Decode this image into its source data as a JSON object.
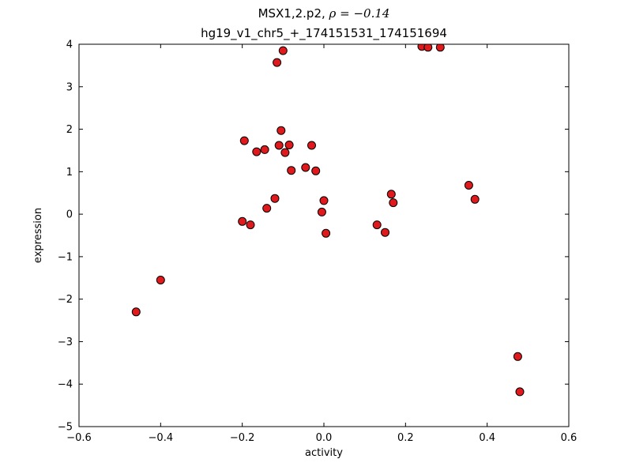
{
  "chart_data": {
    "type": "scatter",
    "title_prefix": "MSX1,2.p2, ",
    "title_math": "ρ = −0.14",
    "title_line2": "hg19_v1_chr5_+_174151531_174151694",
    "xlabel": "activity",
    "ylabel": "expression",
    "xlim": [
      -0.6,
      0.6
    ],
    "ylim": [
      -5,
      4
    ],
    "xticks": [
      -0.6,
      -0.4,
      -0.2,
      0.0,
      0.2,
      0.4,
      0.6
    ],
    "xtick_labels": [
      "−0.6",
      "−0.4",
      "−0.2",
      "0.0",
      "0.2",
      "0.4",
      "0.6"
    ],
    "yticks": [
      -5,
      -4,
      -3,
      -2,
      -1,
      0,
      1,
      2,
      3,
      4
    ],
    "ytick_labels": [
      "−5",
      "−4",
      "−3",
      "−2",
      "−1",
      "0",
      "1",
      "2",
      "3",
      "4"
    ],
    "grid": false,
    "legend": null,
    "marker": {
      "shape": "circle",
      "fill": "#e01a1c",
      "edge": "#000000",
      "radius": 5
    },
    "points": [
      [
        -0.46,
        -2.3
      ],
      [
        -0.4,
        -1.55
      ],
      [
        -0.2,
        -0.17
      ],
      [
        -0.195,
        1.73
      ],
      [
        -0.18,
        -0.25
      ],
      [
        -0.165,
        1.47
      ],
      [
        -0.145,
        1.52
      ],
      [
        -0.14,
        0.14
      ],
      [
        -0.12,
        0.37
      ],
      [
        -0.115,
        3.57
      ],
      [
        -0.1,
        3.85
      ],
      [
        -0.105,
        1.97
      ],
      [
        -0.11,
        1.62
      ],
      [
        -0.095,
        1.45
      ],
      [
        -0.085,
        1.63
      ],
      [
        -0.08,
        1.03
      ],
      [
        -0.045,
        1.1
      ],
      [
        -0.03,
        1.62
      ],
      [
        -0.02,
        1.02
      ],
      [
        -0.005,
        0.05
      ],
      [
        0.0,
        0.32
      ],
      [
        0.005,
        -0.45
      ],
      [
        0.13,
        -0.25
      ],
      [
        0.15,
        -0.43
      ],
      [
        0.165,
        0.47
      ],
      [
        0.17,
        0.27
      ],
      [
        0.24,
        3.95
      ],
      [
        0.255,
        3.93
      ],
      [
        0.285,
        3.93
      ],
      [
        0.355,
        0.68
      ],
      [
        0.37,
        0.35
      ],
      [
        0.475,
        -3.35
      ],
      [
        0.48,
        -4.18
      ]
    ]
  },
  "colors": {
    "background": "#ffffff",
    "axis": "#000000",
    "text": "#000000"
  }
}
